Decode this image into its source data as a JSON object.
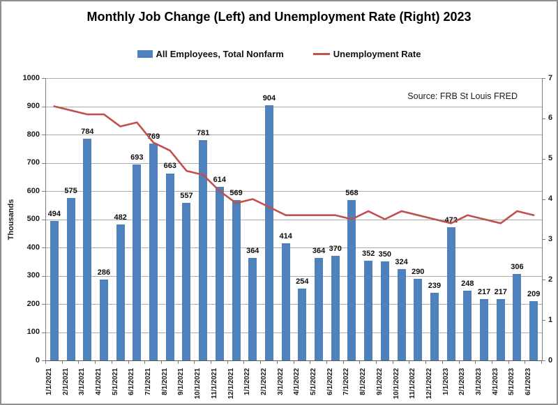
{
  "title": "Monthly Job Change (Left) and Unemployment Rate (Right) 2023",
  "source_note": "Source: FRB St Louis FRED",
  "legend": [
    {
      "label": "All Employees, Total Nonfarm",
      "type": "bar"
    },
    {
      "label": "Unemployment Rate",
      "type": "line"
    }
  ],
  "colors": {
    "bar": "#4F81BD",
    "line": "#C0504D",
    "gridline": "#ABABAB",
    "axis": "#7f7f7f"
  },
  "chart_data": {
    "type": "bar",
    "title": "Monthly Job Change (Left) and Unemployment Rate (Right) 2023",
    "categories": [
      "1/1/2021",
      "2/1/2021",
      "3/1/2021",
      "4/1/2021",
      "5/1/2021",
      "6/1/2021",
      "7/1/2021",
      "8/1/2021",
      "9/1/2021",
      "10/1/2021",
      "11/1/2021",
      "12/1/2021",
      "1/1/2022",
      "2/1/2022",
      "3/1/2022",
      "4/1/2022",
      "5/1/2022",
      "6/1/2022",
      "7/1/2022",
      "8/1/2022",
      "9/1/2022",
      "10/1/2022",
      "11/1/2022",
      "12/1/2022",
      "1/1/2023",
      "2/1/2023",
      "3/1/2023",
      "4/1/2023",
      "5/1/2023",
      "6/1/2023"
    ],
    "series": [
      {
        "name": "All Employees, Total Nonfarm",
        "type": "bar",
        "axis": "left",
        "values": [
          494,
          575,
          784,
          286,
          482,
          693,
          769,
          663,
          557,
          781,
          614,
          569,
          364,
          904,
          414,
          254,
          364,
          370,
          568,
          352,
          350,
          324,
          290,
          239,
          472,
          248,
          217,
          217,
          306,
          209
        ]
      },
      {
        "name": "Unemployment Rate",
        "type": "line",
        "axis": "right",
        "values": [
          6.3,
          6.2,
          6.1,
          6.1,
          5.8,
          5.9,
          5.4,
          5.2,
          4.7,
          4.6,
          4.2,
          3.9,
          4.0,
          3.8,
          3.6,
          3.6,
          3.6,
          3.6,
          3.5,
          3.7,
          3.5,
          3.7,
          3.6,
          3.5,
          3.4,
          3.6,
          3.5,
          3.4,
          3.7,
          3.6
        ]
      }
    ],
    "left_axis": {
      "label": "Thousands",
      "min": 0,
      "max": 1000,
      "step": 100
    },
    "right_axis": {
      "label": "",
      "min": 0,
      "max": 7,
      "step": 1
    },
    "grid": true,
    "legend_position": "top",
    "data_labels": true
  }
}
